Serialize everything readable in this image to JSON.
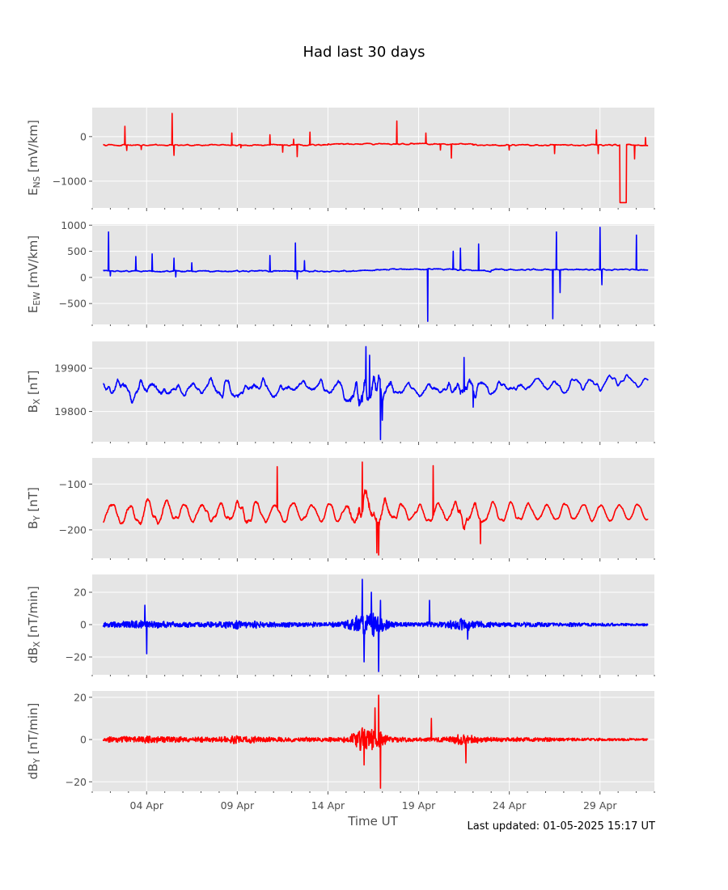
{
  "figure": {
    "title": "Had last 30 days",
    "xlabel": "Time UT",
    "footer": "Last updated: 01-05-2025 15:17 UT",
    "background": "#e5e5e5",
    "grid_color": "#ffffff"
  },
  "chart_data": [
    {
      "type": "line",
      "ylabel": "E",
      "ylabel_sub": "NS",
      "ylabel_unit": " [mV/km]",
      "color": "#ff0000",
      "ylim": [
        -1600,
        650
      ],
      "yticks": [
        {
          "value": 0,
          "label": "0"
        },
        {
          "value": -1000,
          "label": "−1000"
        }
      ],
      "generator": "ens",
      "show_xticklabels": false
    },
    {
      "type": "line",
      "ylabel": "E",
      "ylabel_sub": "EW",
      "ylabel_unit": " [mV/km]",
      "color": "#0000ff",
      "ylim": [
        -900,
        1020
      ],
      "yticks": [
        {
          "value": 1000,
          "label": "1000"
        },
        {
          "value": 500,
          "label": "500"
        },
        {
          "value": 0,
          "label": "0"
        },
        {
          "value": -500,
          "label": "−500"
        }
      ],
      "generator": "eew",
      "show_xticklabels": false
    },
    {
      "type": "line",
      "ylabel": "B",
      "ylabel_sub": "X",
      "ylabel_unit": " [nT]",
      "color": "#0000ff",
      "ylim": [
        19730,
        19962
      ],
      "yticks": [
        {
          "value": 19900,
          "label": "19900"
        },
        {
          "value": 19800,
          "label": "19800"
        }
      ],
      "generator": "bx",
      "show_xticklabels": false
    },
    {
      "type": "line",
      "ylabel": "B",
      "ylabel_sub": "Y",
      "ylabel_unit": " [nT]",
      "color": "#ff0000",
      "ylim": [
        -262,
        -43
      ],
      "yticks": [
        {
          "value": -100,
          "label": "−100"
        },
        {
          "value": -200,
          "label": "−200"
        }
      ],
      "generator": "by",
      "show_xticklabels": false
    },
    {
      "type": "line",
      "ylabel": "dB",
      "ylabel_sub": "X",
      "ylabel_unit": " [nT/min]",
      "color": "#0000ff",
      "ylim": [
        -31,
        31
      ],
      "yticks": [
        {
          "value": 20,
          "label": "20"
        },
        {
          "value": 0,
          "label": "0"
        },
        {
          "value": -20,
          "label": "−20"
        }
      ],
      "generator": "dbx",
      "show_xticklabels": false
    },
    {
      "type": "line",
      "ylabel": "dB",
      "ylabel_sub": "Y",
      "ylabel_unit": " [nT/min]",
      "color": "#ff0000",
      "ylim": [
        -24.5,
        23
      ],
      "yticks": [
        {
          "value": 20,
          "label": "20"
        },
        {
          "value": 0,
          "label": "0"
        },
        {
          "value": -20,
          "label": "−20"
        }
      ],
      "generator": "dby",
      "show_xticklabels": true
    }
  ],
  "xaxis": {
    "xlim_days": [
      1.0,
      32.0
    ],
    "data_range_days": [
      1.6,
      31.65
    ],
    "major_ticks": [
      {
        "day": 4,
        "label": "04 Apr"
      },
      {
        "day": 9,
        "label": "09 Apr"
      },
      {
        "day": 14,
        "label": "14 Apr"
      },
      {
        "day": 19,
        "label": "19 Apr"
      },
      {
        "day": 24,
        "label": "24 Apr"
      },
      {
        "day": 29,
        "label": "29 Apr"
      }
    ],
    "minor_ticks": [
      1,
      2,
      3,
      5,
      6,
      7,
      8,
      10,
      11,
      12,
      13,
      15,
      16,
      17,
      18,
      20,
      21,
      22,
      23,
      25,
      26,
      27,
      28,
      30,
      31,
      32
    ]
  }
}
